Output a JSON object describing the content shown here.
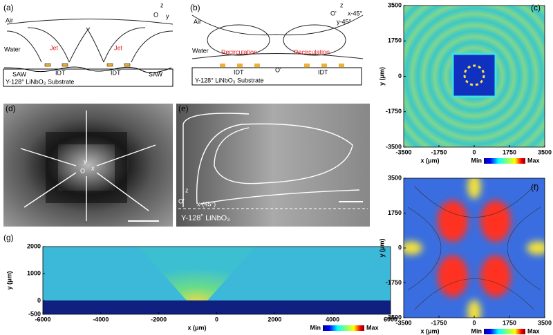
{
  "a": {
    "label": "(a)",
    "air": "Air",
    "water": "Water",
    "jets": [
      "Jet",
      "Jet"
    ],
    "saw": [
      "SAW",
      "SAW"
    ],
    "idt": [
      "IDT",
      "IDT"
    ],
    "substrate": "Y-128° LiNbO₃ Substrate",
    "axis": [
      "z",
      "O",
      "y"
    ]
  },
  "b": {
    "label": "(b)",
    "air": "Air",
    "water": "Water",
    "recirculation": [
      "Recirculation",
      "Recirculation"
    ],
    "idt": [
      "IDT",
      "IDT"
    ],
    "origin": "O'",
    "substrate": "Y-128° LiNbO₃ Substrate",
    "axis": [
      "z",
      "O'",
      "x-45°",
      "y-45°"
    ]
  },
  "c": {
    "label": "(c)",
    "xlabel": "x (μm)",
    "ylabel": "y (μm)",
    "xlim": [
      -3500,
      3500
    ],
    "ylim": [
      -3500,
      3500
    ],
    "xticks": [
      -3500,
      -1750,
      0,
      1750,
      3500
    ],
    "yticks": [
      -3500,
      -1750,
      0,
      1750,
      3500
    ],
    "colorbar": [
      "Min",
      "Max"
    ]
  },
  "d": {
    "label": "(d)",
    "axis": [
      "y",
      "O",
      "x"
    ]
  },
  "e": {
    "label": "(e)",
    "axis": [
      "z",
      "O'",
      "x-(45°)"
    ],
    "substrate": "Y-128˚ LiNbO₃"
  },
  "f": {
    "label": "(f)",
    "xlabel": "x (μm)",
    "ylabel": "y (μm)",
    "xlim": [
      -3500,
      3500
    ],
    "ylim": [
      -3500,
      3500
    ],
    "xticks": [
      -3500,
      -1750,
      0,
      1750,
      3500
    ],
    "yticks": [
      -3500,
      -1750,
      0,
      1750,
      3500
    ],
    "colorbar": [
      "Min",
      "Max"
    ]
  },
  "g": {
    "label": "(g)",
    "xlabel": "x (μm)",
    "ylabel": "y (μm)",
    "xlim": [
      -6000,
      6000
    ],
    "ylim": [
      -500,
      2000
    ],
    "xticks": [
      -6000,
      -4000,
      -2000,
      0,
      2000,
      4000,
      6000
    ],
    "yticks": [
      -500,
      0,
      1000,
      2000
    ],
    "colorbar": [
      "Min",
      "Max"
    ]
  }
}
